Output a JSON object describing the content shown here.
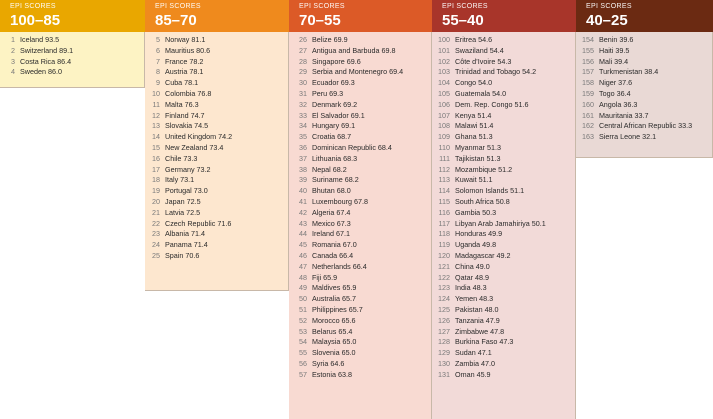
{
  "columns": [
    {
      "subtitle": "EPI SCORES",
      "range": "100–85",
      "head_color": "#e9a700",
      "body_color": "#fdf3c4",
      "rows": [
        {
          "rank": "1",
          "label": "Iceland 93.5"
        },
        {
          "rank": "2",
          "label": "Switzerland 89.1"
        },
        {
          "rank": "3",
          "label": "Costa Rica 86.4"
        },
        {
          "rank": "4",
          "label": "Sweden 86.0"
        }
      ]
    },
    {
      "subtitle": "EPI SCORES",
      "range": "85–70",
      "head_color": "#ef8a1d",
      "body_color": "#fde7cf",
      "rows": [
        {
          "rank": "5",
          "label": "Norway 81.1"
        },
        {
          "rank": "6",
          "label": "Mauritius 80.6"
        },
        {
          "rank": "7",
          "label": "France 78.2"
        },
        {
          "rank": "8",
          "label": "Austria 78.1"
        },
        {
          "rank": "9",
          "label": "Cuba 78.1"
        },
        {
          "rank": "10",
          "label": "Colombia 76.8"
        },
        {
          "rank": "11",
          "label": "Malta 76.3"
        },
        {
          "rank": "12",
          "label": "Finland 74.7"
        },
        {
          "rank": "13",
          "label": "Slovakia 74.5"
        },
        {
          "rank": "14",
          "label": "United Kingdom 74.2"
        },
        {
          "rank": "15",
          "label": "New Zealand 73.4"
        },
        {
          "rank": "16",
          "label": "Chile 73.3"
        },
        {
          "rank": "17",
          "label": "Germany 73.2"
        },
        {
          "rank": "18",
          "label": "Italy 73.1"
        },
        {
          "rank": "19",
          "label": "Portugal 73.0"
        },
        {
          "rank": "20",
          "label": "Japan 72.5"
        },
        {
          "rank": "21",
          "label": "Latvia 72.5"
        },
        {
          "rank": "22",
          "label": "Czech Republic 71.6"
        },
        {
          "rank": "23",
          "label": "Albania 71.4"
        },
        {
          "rank": "24",
          "label": "Panama 71.4"
        },
        {
          "rank": "25",
          "label": "Spain 70.6"
        }
      ]
    },
    {
      "subtitle": "EPI SCORES",
      "range": "70–55",
      "head_color": "#dc5a27",
      "body_color": "#f8dad2",
      "rows": [
        {
          "rank": "26",
          "label": "Belize 69.9"
        },
        {
          "rank": "27",
          "label": "Antigua and Barbuda 69.8"
        },
        {
          "rank": "28",
          "label": "Singapore 69.6"
        },
        {
          "rank": "29",
          "label": "Serbia and Montenegro 69.4"
        },
        {
          "rank": "30",
          "label": "Ecuador 69.3"
        },
        {
          "rank": "31",
          "label": "Peru 69.3"
        },
        {
          "rank": "32",
          "label": "Denmark 69.2"
        },
        {
          "rank": "33",
          "label": "El Salvador 69.1"
        },
        {
          "rank": "34",
          "label": "Hungary 69.1"
        },
        {
          "rank": "35",
          "label": "Croatia 68.7"
        },
        {
          "rank": "36",
          "label": "Dominican Republic 68.4"
        },
        {
          "rank": "37",
          "label": "Lithuania 68.3"
        },
        {
          "rank": "38",
          "label": "Nepal 68.2"
        },
        {
          "rank": "39",
          "label": "Suriname 68.2"
        },
        {
          "rank": "40",
          "label": "Bhutan 68.0"
        },
        {
          "rank": "41",
          "label": "Luxembourg 67.8"
        },
        {
          "rank": "42",
          "label": "Algeria 67.4"
        },
        {
          "rank": "43",
          "label": "Mexico 67.3"
        },
        {
          "rank": "44",
          "label": "Ireland 67.1"
        },
        {
          "rank": "45",
          "label": "Romania 67.0"
        },
        {
          "rank": "46",
          "label": "Canada 66.4"
        },
        {
          "rank": "47",
          "label": "Netherlands 66.4"
        },
        {
          "rank": "48",
          "label": "Fiji 65.9"
        },
        {
          "rank": "49",
          "label": "Maldives 65.9"
        },
        {
          "rank": "50",
          "label": "Australia 65.7"
        },
        {
          "rank": "51",
          "label": "Philippines 65.7"
        },
        {
          "rank": "52",
          "label": "Morocco 65.6"
        },
        {
          "rank": "53",
          "label": "Belarus 65.4"
        },
        {
          "rank": "54",
          "label": "Malaysia 65.0"
        },
        {
          "rank": "55",
          "label": "Slovenia 65.0"
        },
        {
          "rank": "56",
          "label": "Syria 64.6"
        },
        {
          "rank": "57",
          "label": "Estonia 63.8"
        }
      ]
    },
    {
      "subtitle": "EPI SCORES",
      "range": "55–40",
      "head_color": "#a8352a",
      "body_color": "#f2dad8",
      "rows": [
        {
          "rank": "100",
          "label": "Eritrea 54.6"
        },
        {
          "rank": "101",
          "label": "Swaziland 54.4"
        },
        {
          "rank": "102",
          "label": "Côte d’Ivoire 54.3"
        },
        {
          "rank": "103",
          "label": "Trinidad and Tobago 54.2"
        },
        {
          "rank": "104",
          "label": "Congo 54.0"
        },
        {
          "rank": "105",
          "label": "Guatemala 54.0"
        },
        {
          "rank": "106",
          "label": "Dem. Rep. Congo 51.6"
        },
        {
          "rank": "107",
          "label": "Kenya 51.4"
        },
        {
          "rank": "108",
          "label": "Malawi 51.4"
        },
        {
          "rank": "109",
          "label": "Ghana 51.3"
        },
        {
          "rank": "110",
          "label": "Myanmar 51.3"
        },
        {
          "rank": "111",
          "label": "Tajikistan 51.3"
        },
        {
          "rank": "112",
          "label": "Mozambique 51.2"
        },
        {
          "rank": "113",
          "label": "Kuwait 51.1"
        },
        {
          "rank": "114",
          "label": "Solomon Islands 51.1"
        },
        {
          "rank": "115",
          "label": "South Africa 50.8"
        },
        {
          "rank": "116",
          "label": "Gambia 50.3"
        },
        {
          "rank": "117",
          "label": "Libyan Arab Jamahiriya 50.1"
        },
        {
          "rank": "118",
          "label": "Honduras 49.9"
        },
        {
          "rank": "119",
          "label": "Uganda 49.8"
        },
        {
          "rank": "120",
          "label": "Madagascar 49.2"
        },
        {
          "rank": "121",
          "label": "China 49.0"
        },
        {
          "rank": "122",
          "label": "Qatar 48.9"
        },
        {
          "rank": "123",
          "label": "India 48.3"
        },
        {
          "rank": "124",
          "label": "Yemen 48.3"
        },
        {
          "rank": "125",
          "label": "Pakistan 48.0"
        },
        {
          "rank": "126",
          "label": "Tanzania 47.9"
        },
        {
          "rank": "127",
          "label": "Zimbabwe 47.8"
        },
        {
          "rank": "128",
          "label": "Burkina Faso 47.3"
        },
        {
          "rank": "129",
          "label": "Sudan 47.1"
        },
        {
          "rank": "130",
          "label": "Zambia 47.0"
        },
        {
          "rank": "131",
          "label": "Oman 45.9"
        }
      ]
    },
    {
      "subtitle": "EPI SCORES",
      "range": "40–25",
      "head_color": "#6b2a12",
      "body_color": "#e9d9d5",
      "rows": [
        {
          "rank": "154",
          "label": "Benin 39.6"
        },
        {
          "rank": "155",
          "label": "Haiti 39.5"
        },
        {
          "rank": "156",
          "label": "Mali 39.4"
        },
        {
          "rank": "157",
          "label": "Turkmenistan 38.4"
        },
        {
          "rank": "158",
          "label": "Niger 37.6"
        },
        {
          "rank": "159",
          "label": "Togo 36.4"
        },
        {
          "rank": "160",
          "label": "Angola 36.3"
        },
        {
          "rank": "161",
          "label": "Mauritania 33.7"
        },
        {
          "rank": "162",
          "label": "Central African Republic 33.3"
        },
        {
          "rank": "163",
          "label": "Sierra Leone 32.1"
        }
      ]
    }
  ]
}
